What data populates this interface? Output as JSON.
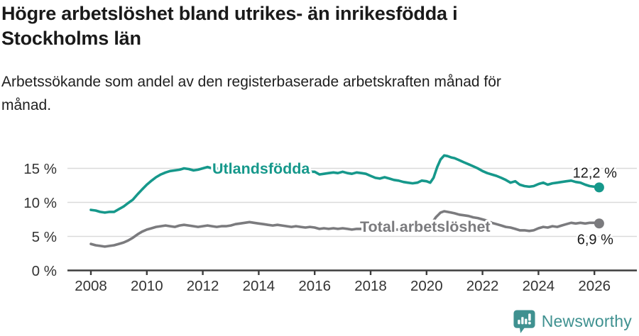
{
  "chart_data": {
    "type": "line",
    "title": "Högre arbetslöshet bland utrikes- än inrikesfödda i Stockholms län",
    "subtitle": "Arbetssökande som andel av den registerbaserade arbetskraften månad för månad.",
    "unit": "%",
    "x_axis": {
      "ticks": [
        2008,
        2010,
        2012,
        2014,
        2016,
        2018,
        2020,
        2022,
        2024,
        2026
      ],
      "min": 2007.2,
      "max": 2027.5
    },
    "y_axis": {
      "ticks": [
        {
          "value": 0,
          "label": "0 %"
        },
        {
          "value": 5,
          "label": "5 %"
        },
        {
          "value": 10,
          "label": "10 %"
        },
        {
          "value": 15,
          "label": "15 %"
        }
      ],
      "min": 0,
      "max": 17.6,
      "gridlines": true
    },
    "legend_position": "inline-labels",
    "series": [
      {
        "name": "Utlandsfödda",
        "color_key": "teal",
        "end_label": "12,2 %",
        "end_value": 12.2,
        "points": [
          [
            2008,
            8.9
          ],
          [
            2008.17,
            8.8
          ],
          [
            2008.33,
            8.6
          ],
          [
            2008.5,
            8.5
          ],
          [
            2008.67,
            8.6
          ],
          [
            2008.83,
            8.6
          ],
          [
            2009,
            9
          ],
          [
            2009.17,
            9.4
          ],
          [
            2009.33,
            9.9
          ],
          [
            2009.5,
            10.4
          ],
          [
            2009.67,
            11.2
          ],
          [
            2009.83,
            11.9
          ],
          [
            2010,
            12.6
          ],
          [
            2010.17,
            13.2
          ],
          [
            2010.33,
            13.7
          ],
          [
            2010.5,
            14.1
          ],
          [
            2010.67,
            14.4
          ],
          [
            2010.83,
            14.6
          ],
          [
            2011,
            14.7
          ],
          [
            2011.17,
            14.8
          ],
          [
            2011.33,
            15
          ],
          [
            2011.5,
            14.9
          ],
          [
            2011.67,
            14.7
          ],
          [
            2011.83,
            14.8
          ],
          [
            2012,
            15
          ],
          [
            2012.17,
            15.2
          ],
          [
            2012.33,
            15
          ],
          [
            2012.5,
            15
          ],
          [
            2012.75,
            14.9
          ],
          [
            2013,
            14.9
          ],
          [
            2013.25,
            15
          ],
          [
            2013.5,
            14.9
          ],
          [
            2013.75,
            14.8
          ],
          [
            2014,
            14.8
          ],
          [
            2014.25,
            14.7
          ],
          [
            2014.5,
            14.7
          ],
          [
            2014.75,
            14.6
          ],
          [
            2015,
            14.6
          ],
          [
            2015.25,
            14.5
          ],
          [
            2015.5,
            14.5
          ],
          [
            2015.75,
            14.5
          ],
          [
            2016,
            14.5
          ],
          [
            2016.17,
            14.1
          ],
          [
            2016.33,
            14.2
          ],
          [
            2016.5,
            14.3
          ],
          [
            2016.67,
            14.4
          ],
          [
            2016.83,
            14.3
          ],
          [
            2017,
            14.5
          ],
          [
            2017.17,
            14.3
          ],
          [
            2017.33,
            14.2
          ],
          [
            2017.5,
            14.4
          ],
          [
            2017.67,
            14.3
          ],
          [
            2017.83,
            14.2
          ],
          [
            2018,
            13.9
          ],
          [
            2018.17,
            13.6
          ],
          [
            2018.33,
            13.5
          ],
          [
            2018.5,
            13.7
          ],
          [
            2018.67,
            13.5
          ],
          [
            2018.83,
            13.3
          ],
          [
            2019,
            13.2
          ],
          [
            2019.17,
            13
          ],
          [
            2019.33,
            12.9
          ],
          [
            2019.5,
            12.8
          ],
          [
            2019.67,
            12.9
          ],
          [
            2019.83,
            13.2
          ],
          [
            2020,
            13.1
          ],
          [
            2020.13,
            12.9
          ],
          [
            2020.25,
            13.6
          ],
          [
            2020.38,
            15.2
          ],
          [
            2020.5,
            16.3
          ],
          [
            2020.63,
            16.9
          ],
          [
            2020.75,
            16.8
          ],
          [
            2020.88,
            16.6
          ],
          [
            2021,
            16.5
          ],
          [
            2021.17,
            16.2
          ],
          [
            2021.33,
            15.9
          ],
          [
            2021.5,
            15.6
          ],
          [
            2021.67,
            15.3
          ],
          [
            2021.83,
            15
          ],
          [
            2022,
            14.6
          ],
          [
            2022.17,
            14.3
          ],
          [
            2022.33,
            14.1
          ],
          [
            2022.5,
            13.9
          ],
          [
            2022.67,
            13.6
          ],
          [
            2022.83,
            13.3
          ],
          [
            2023,
            12.9
          ],
          [
            2023.17,
            13.1
          ],
          [
            2023.33,
            12.6
          ],
          [
            2023.5,
            12.4
          ],
          [
            2023.67,
            12.3
          ],
          [
            2023.83,
            12.4
          ],
          [
            2024,
            12.7
          ],
          [
            2024.17,
            12.9
          ],
          [
            2024.33,
            12.6
          ],
          [
            2024.5,
            12.8
          ],
          [
            2024.67,
            12.9
          ],
          [
            2024.83,
            13
          ],
          [
            2025,
            13.1
          ],
          [
            2025.17,
            13.2
          ],
          [
            2025.33,
            13
          ],
          [
            2025.5,
            12.9
          ],
          [
            2025.67,
            12.6
          ],
          [
            2025.83,
            12.4
          ],
          [
            2026,
            12.3
          ],
          [
            2026.17,
            12.2
          ]
        ]
      },
      {
        "name": "Total arbetslöshet",
        "color_key": "gray",
        "end_label": "6,9 %",
        "end_value": 6.9,
        "points": [
          [
            2008,
            3.9
          ],
          [
            2008.17,
            3.7
          ],
          [
            2008.33,
            3.6
          ],
          [
            2008.5,
            3.5
          ],
          [
            2008.67,
            3.6
          ],
          [
            2008.83,
            3.7
          ],
          [
            2009,
            3.9
          ],
          [
            2009.17,
            4.1
          ],
          [
            2009.33,
            4.4
          ],
          [
            2009.5,
            4.8
          ],
          [
            2009.67,
            5.3
          ],
          [
            2009.83,
            5.7
          ],
          [
            2010,
            6
          ],
          [
            2010.17,
            6.2
          ],
          [
            2010.33,
            6.4
          ],
          [
            2010.5,
            6.5
          ],
          [
            2010.67,
            6.6
          ],
          [
            2010.83,
            6.5
          ],
          [
            2011,
            6.4
          ],
          [
            2011.17,
            6.6
          ],
          [
            2011.33,
            6.7
          ],
          [
            2011.5,
            6.6
          ],
          [
            2011.67,
            6.5
          ],
          [
            2011.83,
            6.4
          ],
          [
            2012,
            6.5
          ],
          [
            2012.17,
            6.6
          ],
          [
            2012.33,
            6.5
          ],
          [
            2012.5,
            6.4
          ],
          [
            2012.67,
            6.5
          ],
          [
            2012.83,
            6.5
          ],
          [
            2013,
            6.6
          ],
          [
            2013.17,
            6.8
          ],
          [
            2013.33,
            6.9
          ],
          [
            2013.5,
            7
          ],
          [
            2013.67,
            7.1
          ],
          [
            2013.83,
            7
          ],
          [
            2014,
            6.9
          ],
          [
            2014.17,
            6.8
          ],
          [
            2014.33,
            6.7
          ],
          [
            2014.5,
            6.6
          ],
          [
            2014.67,
            6.7
          ],
          [
            2014.83,
            6.6
          ],
          [
            2015,
            6.5
          ],
          [
            2015.17,
            6.4
          ],
          [
            2015.33,
            6.5
          ],
          [
            2015.5,
            6.4
          ],
          [
            2015.67,
            6.3
          ],
          [
            2015.83,
            6.4
          ],
          [
            2016,
            6.3
          ],
          [
            2016.17,
            6.1
          ],
          [
            2016.33,
            6.2
          ],
          [
            2016.5,
            6.1
          ],
          [
            2016.67,
            6.2
          ],
          [
            2016.83,
            6.1
          ],
          [
            2017,
            6.2
          ],
          [
            2017.17,
            6.1
          ],
          [
            2017.33,
            6
          ],
          [
            2017.5,
            6.1
          ],
          [
            2017.67,
            6.1
          ],
          [
            2017.83,
            6
          ],
          [
            2018,
            6
          ],
          [
            2018.25,
            6.1
          ],
          [
            2018.5,
            6
          ],
          [
            2018.75,
            6
          ],
          [
            2019,
            6
          ],
          [
            2019.25,
            6
          ],
          [
            2019.5,
            6.1
          ],
          [
            2019.75,
            6.2
          ],
          [
            2020,
            6.3
          ],
          [
            2020.17,
            6.8
          ],
          [
            2020.33,
            7.8
          ],
          [
            2020.5,
            8.5
          ],
          [
            2020.63,
            8.7
          ],
          [
            2020.75,
            8.6
          ],
          [
            2020.88,
            8.5
          ],
          [
            2021,
            8.4
          ],
          [
            2021.17,
            8.2
          ],
          [
            2021.33,
            8.1
          ],
          [
            2021.5,
            8
          ],
          [
            2021.67,
            7.8
          ],
          [
            2021.83,
            7.7
          ],
          [
            2022,
            7.5
          ],
          [
            2022.17,
            7.3
          ],
          [
            2022.33,
            7
          ],
          [
            2022.5,
            6.8
          ],
          [
            2022.67,
            6.6
          ],
          [
            2022.83,
            6.4
          ],
          [
            2023,
            6.3
          ],
          [
            2023.17,
            6.1
          ],
          [
            2023.33,
            5.9
          ],
          [
            2023.5,
            5.9
          ],
          [
            2023.67,
            5.8
          ],
          [
            2023.83,
            5.9
          ],
          [
            2024,
            6.2
          ],
          [
            2024.17,
            6.4
          ],
          [
            2024.33,
            6.3
          ],
          [
            2024.5,
            6.5
          ],
          [
            2024.67,
            6.4
          ],
          [
            2024.83,
            6.6
          ],
          [
            2025,
            6.8
          ],
          [
            2025.17,
            7
          ],
          [
            2025.33,
            6.9
          ],
          [
            2025.5,
            7
          ],
          [
            2025.67,
            6.9
          ],
          [
            2025.83,
            7
          ],
          [
            2026,
            7
          ],
          [
            2026.17,
            6.9
          ]
        ]
      }
    ]
  },
  "footer": {
    "brand": "Newsworthy"
  },
  "colors": {
    "teal": "#16988b",
    "gray": "#7b7b7e",
    "grid": "#dadada",
    "axis": "#3d3d3d",
    "tick_text": "#333333",
    "label_text": "#1a1a1a",
    "logo_teal": "#3f9190",
    "background": "#ffffff"
  }
}
